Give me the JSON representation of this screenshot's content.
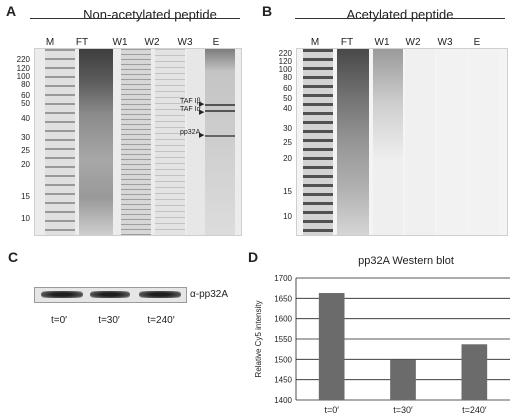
{
  "panels": {
    "a": {
      "letter": "A",
      "title": "Non-acetylated peptide",
      "lanes": [
        "M",
        "FT",
        "W1",
        "W2",
        "W3",
        "E"
      ],
      "mw_markers": [
        "220",
        "120",
        "100",
        "80",
        "60",
        "50",
        "40",
        "30",
        "25",
        "20",
        "15",
        "10"
      ],
      "band_labels": [
        "TAF Iβ",
        "TAF Iα",
        "pp32A"
      ]
    },
    "b": {
      "letter": "B",
      "title": "Acetylated peptide",
      "lanes": [
        "M",
        "FT",
        "W1",
        "W2",
        "W3",
        "E"
      ],
      "mw_markers": [
        "220",
        "120",
        "100",
        "80",
        "60",
        "50",
        "40",
        "30",
        "25",
        "20",
        "15",
        "10"
      ]
    },
    "c": {
      "letter": "C",
      "antibody_label": "α-pp32A",
      "timepoints": [
        "t=0′",
        "t=30′",
        "t=240′"
      ]
    },
    "d": {
      "letter": "D"
    }
  },
  "chart_data": {
    "type": "bar",
    "title": "pp32A Western blot",
    "ylabel": "Relative Cy5 intensity",
    "xlabel": "",
    "categories": [
      "t=0′",
      "t=30′",
      "t=240′"
    ],
    "values": [
      1663,
      1500,
      1537
    ],
    "ylim": [
      1400,
      1700
    ],
    "yticks": [
      1400,
      1450,
      1500,
      1550,
      1600,
      1650,
      1700
    ],
    "grid": true,
    "bar_color": "#6b6b6b"
  }
}
